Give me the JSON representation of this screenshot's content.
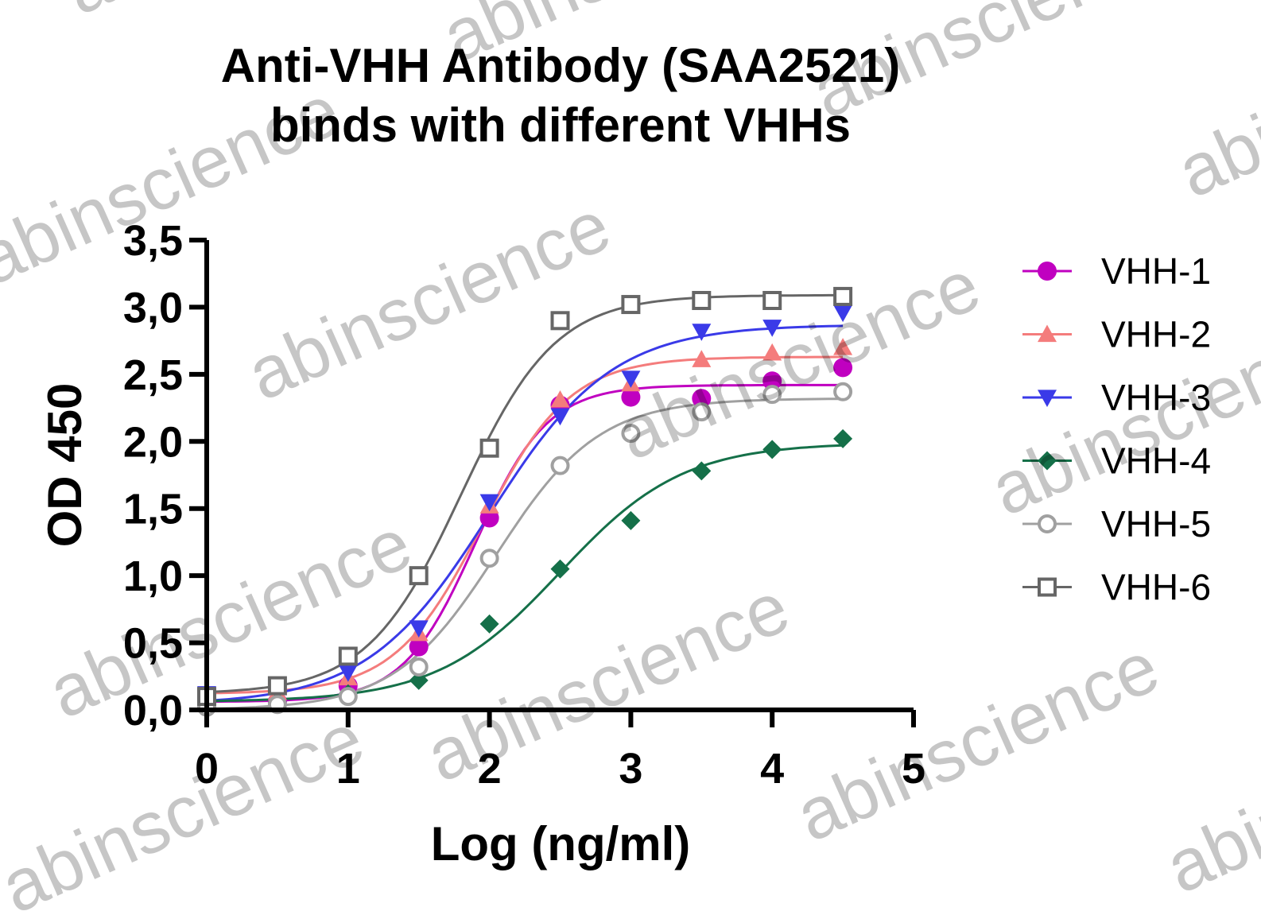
{
  "chart_data": {
    "type": "scatter",
    "title_lines": [
      "Anti-VHH Antibody (SAA2521)",
      "binds with different VHHs"
    ],
    "xlabel": "Log (ng/ml)",
    "ylabel": "OD 450",
    "xlim": [
      0,
      5
    ],
    "ylim": [
      0,
      3.5
    ],
    "x_ticks": [
      0,
      1,
      2,
      3,
      4,
      5
    ],
    "x_tick_labels": [
      "0",
      "1",
      "2",
      "3",
      "4",
      "5"
    ],
    "y_ticks": [
      0,
      0.5,
      1,
      1.5,
      2,
      2.5,
      3,
      3.5
    ],
    "y_tick_labels": [
      "0,0",
      "0,5",
      "1,0",
      "1,5",
      "2,0",
      "2,5",
      "3,0",
      "3,5"
    ],
    "grid": false,
    "legend_position": "right",
    "fit": "sigmoidal",
    "x": [
      0,
      0.5,
      1,
      1.5,
      2,
      2.5,
      3,
      3.5,
      4,
      4.5
    ],
    "series": [
      {
        "name": "VHH-1",
        "color": "#c000c0",
        "marker": "circle-filled",
        "values": [
          0.05,
          0.06,
          0.18,
          0.47,
          1.43,
          2.27,
          2.33,
          2.32,
          2.45,
          2.55
        ]
      },
      {
        "name": "VHH-2",
        "color": "#f47c7c",
        "marker": "triangle-up",
        "values": [
          0.1,
          0.13,
          0.24,
          0.57,
          1.52,
          2.31,
          2.43,
          2.61,
          2.66,
          2.7
        ]
      },
      {
        "name": "VHH-3",
        "color": "#3a3ae8",
        "marker": "triangle-down",
        "values": [
          0.12,
          0.14,
          0.28,
          0.61,
          1.55,
          2.19,
          2.47,
          2.82,
          2.85,
          2.96
        ]
      },
      {
        "name": "VHH-4",
        "color": "#157049",
        "marker": "diamond-filled",
        "values": [
          0.05,
          0.06,
          0.12,
          0.22,
          0.64,
          1.05,
          1.41,
          1.78,
          1.94,
          2.02
        ]
      },
      {
        "name": "VHH-5",
        "color": "#a0a0a0",
        "marker": "circle-open",
        "values": [
          0.02,
          0.04,
          0.1,
          0.32,
          1.13,
          1.82,
          2.06,
          2.22,
          2.35,
          2.37
        ]
      },
      {
        "name": "VHH-6",
        "color": "#666666",
        "marker": "square-open",
        "values": [
          0.1,
          0.18,
          0.4,
          1.0,
          1.95,
          2.9,
          3.02,
          3.05,
          3.05,
          3.08
        ]
      }
    ],
    "watermark": "abinscience"
  }
}
